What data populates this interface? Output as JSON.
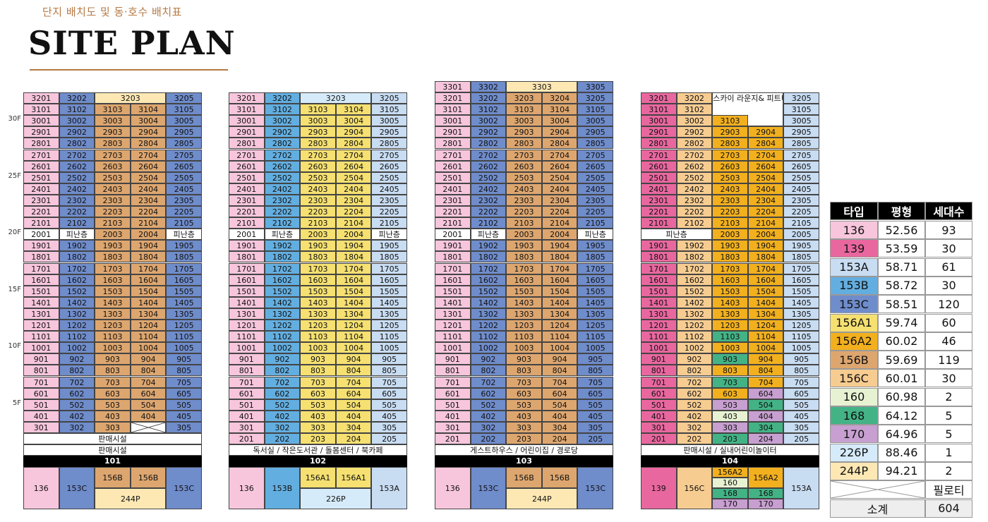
{
  "header": {
    "subtitle": "단지 배치도 및 동·호수 배치표",
    "title": "SITE PLAN"
  },
  "floor_labels": [
    "30F",
    "25F",
    "20F",
    "15F",
    "10F",
    "5F"
  ],
  "colors": {
    "136": "#f7c6dc",
    "139": "#e9679f",
    "153A": "#c8dcf2",
    "153B": "#63aee0",
    "153C": "#6f8ccb",
    "156A1": "#f5e071",
    "156A2": "#f2b01e",
    "156B": "#dda66f",
    "156C": "#f7cc91",
    "160": "#e7f2d2",
    "168": "#43b386",
    "170": "#c79fd0",
    "226P": "#d6ebfa",
    "244P": "#fde8b4"
  },
  "refuge_label": "피난층",
  "buildings": [
    {
      "name": "101",
      "base_labels": [
        "판매시설",
        "판매시설"
      ],
      "cols": [
        "136",
        "153C",
        "156B",
        "156B",
        "153C"
      ],
      "top_floor": 32,
      "penthouse": {
        "label": "3203",
        "type": "244P",
        "span": [
          2,
          3
        ]
      },
      "refuge_floor": 20,
      "refuge_cols": [
        1,
        4
      ],
      "lowest": 3,
      "missing": {
        "floor": 3,
        "col": 3
      },
      "plan": [
        {
          "label": "136",
          "type": "136"
        },
        {
          "label": "153C",
          "type": "153C"
        },
        {
          "label": "156B",
          "type": "156B"
        },
        {
          "label": "156B",
          "type": "156B"
        },
        {
          "label": "153C",
          "type": "153C"
        },
        {
          "label": "244P",
          "type": "244P"
        }
      ]
    },
    {
      "name": "102",
      "base_labels": [
        "독서실 / 작은도서관 / 돌봄센터 / 북카페"
      ],
      "cols": [
        "136",
        "153B",
        "156A1",
        "156A1",
        "153A"
      ],
      "top_floor": 32,
      "penthouse": {
        "label": "3203",
        "type": "226P",
        "span": [
          2,
          3
        ]
      },
      "refuge_floor": 20,
      "refuge_cols": [
        1,
        4
      ],
      "lowest": 2,
      "plan": [
        {
          "label": "136",
          "type": "136"
        },
        {
          "label": "153B",
          "type": "153B"
        },
        {
          "label": "156A1",
          "type": "156A1"
        },
        {
          "label": "156A1",
          "type": "156A1"
        },
        {
          "label": "153A",
          "type": "153A"
        },
        {
          "label": "226P",
          "type": "226P"
        }
      ]
    },
    {
      "name": "103",
      "base_labels": [
        "게스트하우스 / 어린이집 / 경로당"
      ],
      "cols": [
        "136",
        "153C",
        "156B",
        "156B",
        "153C"
      ],
      "top_floor": 33,
      "penthouse": {
        "label": "3303",
        "type": "244P",
        "span": [
          2,
          3
        ]
      },
      "refuge_floor": 20,
      "refuge_cols": [
        1,
        4
      ],
      "lowest": 2,
      "plan": [
        {
          "label": "136",
          "type": "136"
        },
        {
          "label": "153C",
          "type": "153C"
        },
        {
          "label": "156B",
          "type": "156B"
        },
        {
          "label": "156B",
          "type": "156B"
        },
        {
          "label": "153C",
          "type": "153C"
        },
        {
          "label": "244P",
          "type": "244P"
        }
      ]
    },
    {
      "name": "104",
      "base_labels": [
        "판매시설 / 실내어린이놀이터"
      ],
      "cols": [
        "139",
        "156C",
        "156A2",
        "156A2",
        "153A"
      ],
      "top_floor": 32,
      "sky_lounge": "스카이 라운지& 피트니스",
      "refuge_floor": 20,
      "refuge_cols": [
        0,
        1
      ],
      "lowest": 2,
      "plan": [
        {
          "label": "139",
          "type": "139"
        },
        {
          "label": "156C",
          "type": "156C"
        },
        {
          "label": "156A2",
          "type": "156A2"
        },
        {
          "label": "160",
          "type": "160"
        },
        {
          "label": "168",
          "type": "168"
        },
        {
          "label": "168",
          "type": "168"
        },
        {
          "label": "170",
          "type": "170"
        },
        {
          "label": "170",
          "type": "170"
        },
        {
          "label": "153A",
          "type": "153A"
        }
      ]
    }
  ],
  "legend": {
    "headers": [
      "타입",
      "평형",
      "세대수"
    ],
    "rows": [
      [
        "136",
        "52.56",
        "93"
      ],
      [
        "139",
        "53.59",
        "30"
      ],
      [
        "153A",
        "58.71",
        "61"
      ],
      [
        "153B",
        "58.72",
        "30"
      ],
      [
        "153C",
        "58.51",
        "120"
      ],
      [
        "156A1",
        "59.74",
        "60"
      ],
      [
        "156A2",
        "60.02",
        "46"
      ],
      [
        "156B",
        "59.69",
        "119"
      ],
      [
        "156C",
        "60.01",
        "30"
      ],
      [
        "160",
        "60.98",
        "2"
      ],
      [
        "168",
        "64.12",
        "5"
      ],
      [
        "170",
        "64.96",
        "5"
      ],
      [
        "226P",
        "88.46",
        "1"
      ],
      [
        "244P",
        "94.21",
        "2"
      ]
    ],
    "piloti": "필로티",
    "total_label": "소계",
    "total": "604"
  }
}
